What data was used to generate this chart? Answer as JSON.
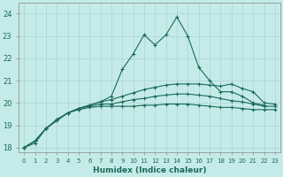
{
  "xlabel": "Humidex (Indice chaleur)",
  "background_color": "#c5ebe8",
  "grid_color": "#aad4d0",
  "line_color": "#1a6b5a",
  "xlim": [
    -0.5,
    23.5
  ],
  "ylim": [
    17.8,
    24.5
  ],
  "yticks": [
    18,
    19,
    20,
    21,
    22,
    23,
    24
  ],
  "xtick_labels": [
    "0",
    "1",
    "2",
    "3",
    "4",
    "5",
    "6",
    "7",
    "8",
    "9",
    "10",
    "11",
    "12",
    "13",
    "14",
    "15",
    "16",
    "17",
    "18",
    "19",
    "20",
    "21",
    "22",
    "23"
  ],
  "series": [
    [
      18.0,
      18.2,
      18.85,
      19.2,
      19.55,
      19.75,
      19.9,
      20.05,
      20.3,
      21.5,
      22.2,
      23.05,
      22.6,
      23.05,
      23.85,
      23.0,
      21.6,
      21.0,
      20.5,
      20.5,
      20.3,
      20.0,
      19.9,
      null
    ],
    [
      18.0,
      18.3,
      18.85,
      19.25,
      19.55,
      19.75,
      19.9,
      20.05,
      20.15,
      20.3,
      20.45,
      20.6,
      20.7,
      20.8,
      20.85,
      20.85,
      20.85,
      20.8,
      20.75,
      20.85,
      20.65,
      20.5,
      20.0,
      19.95
    ],
    [
      18.0,
      18.3,
      18.85,
      19.25,
      19.55,
      19.75,
      19.85,
      19.95,
      19.95,
      20.05,
      20.15,
      20.2,
      20.3,
      20.35,
      20.4,
      20.4,
      20.35,
      20.3,
      20.2,
      20.1,
      20.05,
      19.95,
      19.85,
      19.85
    ],
    [
      18.0,
      18.3,
      18.85,
      19.25,
      19.55,
      19.7,
      19.8,
      19.85,
      19.85,
      19.85,
      19.85,
      19.9,
      19.9,
      19.95,
      19.95,
      19.95,
      19.9,
      19.85,
      19.8,
      19.8,
      19.75,
      19.7,
      19.7,
      19.7
    ]
  ]
}
